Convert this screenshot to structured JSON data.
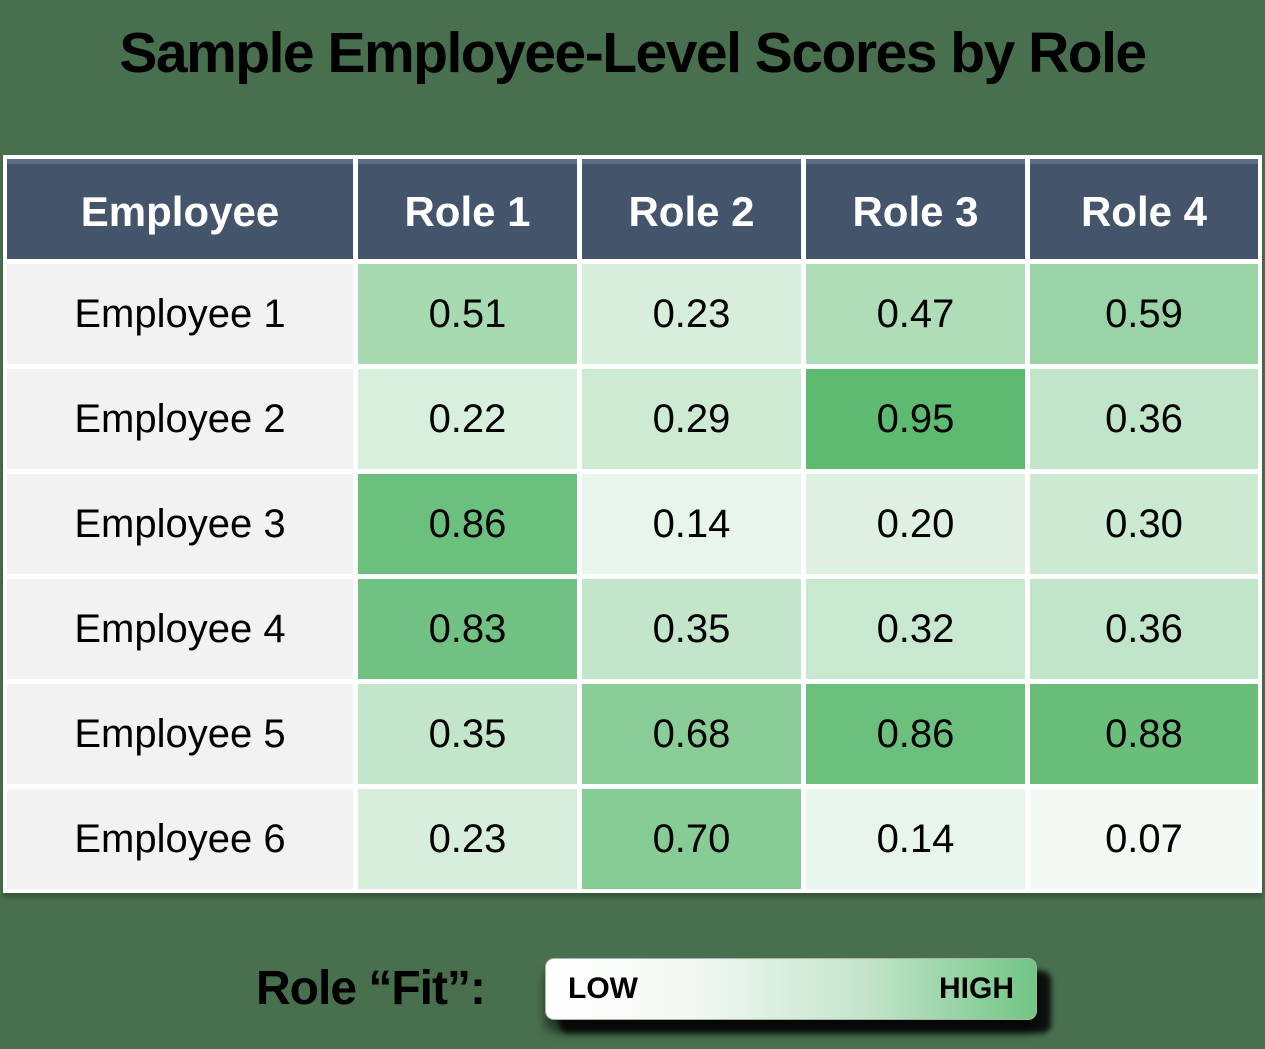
{
  "title": "Sample Employee-Level Scores by Role",
  "chart_data": {
    "type": "heatmap",
    "title": "Sample Employee-Level Scores by Role",
    "columns": [
      "Employee",
      "Role 1",
      "Role 2",
      "Role 3",
      "Role 4"
    ],
    "row_labels": [
      "Employee 1",
      "Employee 2",
      "Employee 3",
      "Employee 4",
      "Employee 5",
      "Employee 6"
    ],
    "values": [
      [
        0.51,
        0.23,
        0.47,
        0.59
      ],
      [
        0.22,
        0.29,
        0.95,
        0.36
      ],
      [
        0.86,
        0.14,
        0.2,
        0.3
      ],
      [
        0.83,
        0.35,
        0.32,
        0.36
      ],
      [
        0.35,
        0.68,
        0.86,
        0.88
      ],
      [
        0.23,
        0.7,
        0.14,
        0.07
      ]
    ],
    "value_range": [
      0,
      1
    ],
    "value_decimals": 2,
    "colormap": {
      "low": "#ffffff",
      "high": "#54b668"
    },
    "legend": {
      "label": "Role “Fit”:",
      "low_label": "LOW",
      "high_label": "HIGH"
    }
  },
  "colors": {
    "page_background": "#48704e",
    "header_background": "#44546a",
    "header_top_edge": "#5d6d84",
    "header_text": "#ffffff",
    "row_label_background": "#f2f2f2",
    "cell_text": "#000000",
    "grid_gap": "#ffffff",
    "legend_gradient_start": "#ffffff",
    "legend_gradient_end": "#72c585"
  }
}
